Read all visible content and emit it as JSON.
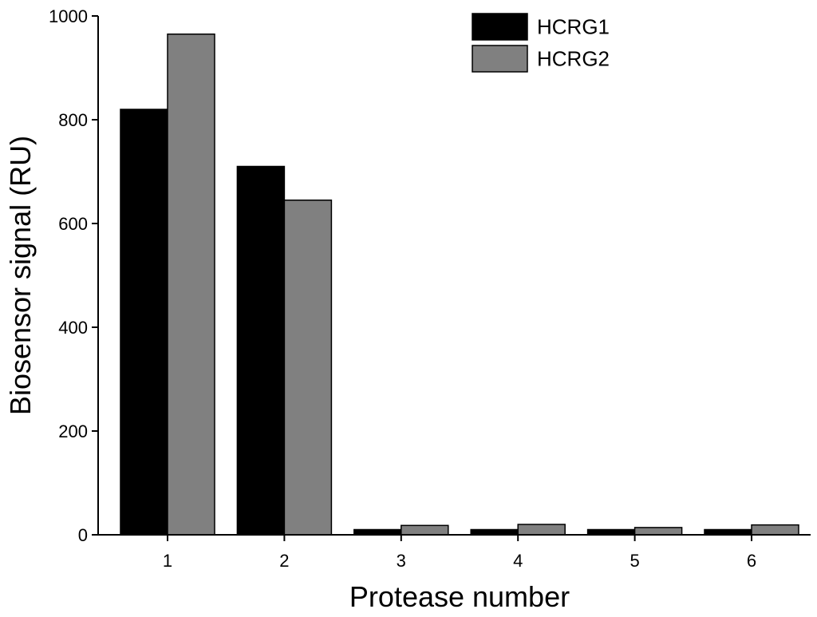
{
  "chart_data": {
    "type": "bar",
    "title": "",
    "xlabel": "Protease number",
    "ylabel": "Biosensor signal (RU)",
    "categories": [
      "1",
      "2",
      "3",
      "4",
      "5",
      "6"
    ],
    "ylim": [
      0,
      1000
    ],
    "yticks": [
      "0",
      "200",
      "400",
      "600",
      "800",
      "1000"
    ],
    "grid": false,
    "legend_position": "top-right",
    "series": [
      {
        "name": "HCRG1",
        "color": "#000000",
        "values": [
          820,
          710,
          10,
          10,
          10,
          10
        ]
      },
      {
        "name": "HCRG2",
        "color": "#808080",
        "values": [
          965,
          645,
          18,
          20,
          14,
          19
        ]
      }
    ]
  }
}
